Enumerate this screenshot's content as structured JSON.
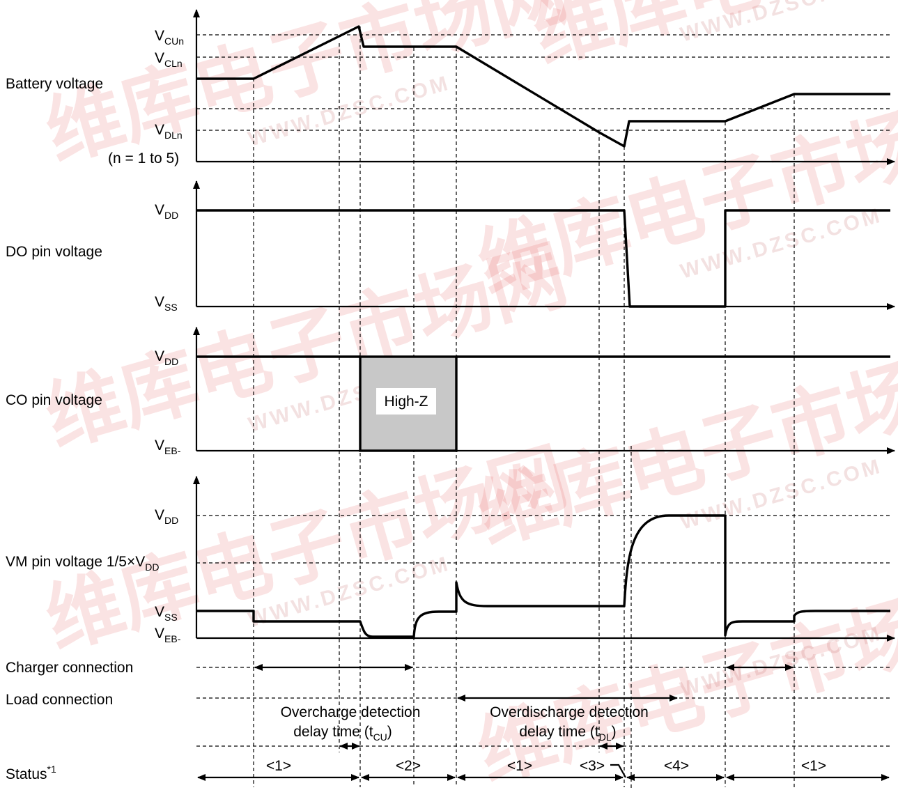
{
  "signals": [
    {
      "key": "battery",
      "label": "Battery voltage",
      "note": "(n = 1 to 5)",
      "levels": [
        {
          "main": "V",
          "sub": "CUn"
        },
        {
          "main": "V",
          "sub": "CLn"
        },
        {
          "main": "V",
          "sub": "DLn"
        }
      ]
    },
    {
      "key": "do",
      "label": "DO pin voltage",
      "levels": [
        {
          "main": "V",
          "sub": "DD"
        },
        {
          "main": "V",
          "sub": "SS"
        }
      ]
    },
    {
      "key": "co",
      "label": "CO pin voltage",
      "box_text": "High-Z",
      "levels": [
        {
          "main": "V",
          "sub": "DD"
        },
        {
          "main": "V",
          "sub": "EB-"
        }
      ]
    },
    {
      "key": "vm",
      "label": "VM pin voltage",
      "label_extra": "1/5×V",
      "label_extra_sub": "DD",
      "levels": [
        {
          "main": "V",
          "sub": "DD"
        },
        {
          "main": "V",
          "sub": "SS"
        },
        {
          "main": "V",
          "sub": "EB-"
        }
      ]
    }
  ],
  "connections": {
    "charger": "Charger connection",
    "load": "Load connection"
  },
  "delays": {
    "overcharge_line1": "Overcharge detection",
    "overcharge_line2": "delay time (t",
    "overcharge_sub": "CU",
    "overcharge_close": ")",
    "overdischarge_line1": "Overdischarge detection",
    "overdischarge_line2": "delay time (t",
    "overdischarge_sub": "DL",
    "overdischarge_close": ")"
  },
  "status": {
    "label": "Status",
    "footnote": "*1",
    "states": [
      "<1>",
      "<2>",
      "<1>",
      "<3>",
      "<4>",
      "<1>"
    ]
  },
  "watermark": {
    "cjk": "维库电子市场网",
    "url": "WWW.DZSC.COM",
    "accent": "#e03030"
  }
}
